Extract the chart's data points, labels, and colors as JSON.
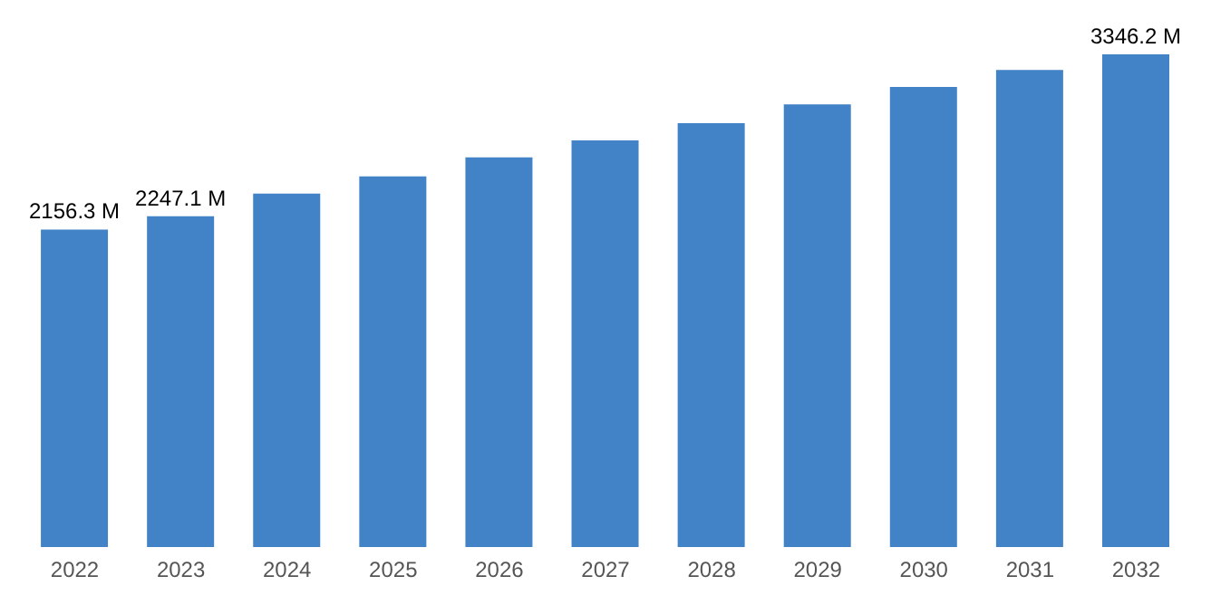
{
  "chart_data": {
    "type": "bar",
    "categories": [
      "2022",
      "2023",
      "2024",
      "2025",
      "2026",
      "2027",
      "2028",
      "2029",
      "2030",
      "2031",
      "2032"
    ],
    "series": [
      {
        "color": "#4282c6",
        "values": [
          2156.3,
          2247.1,
          2401,
          2518,
          2646,
          2762,
          2879,
          3007,
          3124,
          3240,
          3346.2
        ],
        "value_labels": [
          "2156.3 M",
          "2247.1 M",
          null,
          null,
          null,
          null,
          null,
          null,
          null,
          null,
          "3346.2 M"
        ]
      }
    ],
    "grid": false,
    "legend": false,
    "tick_labels": "x"
  }
}
